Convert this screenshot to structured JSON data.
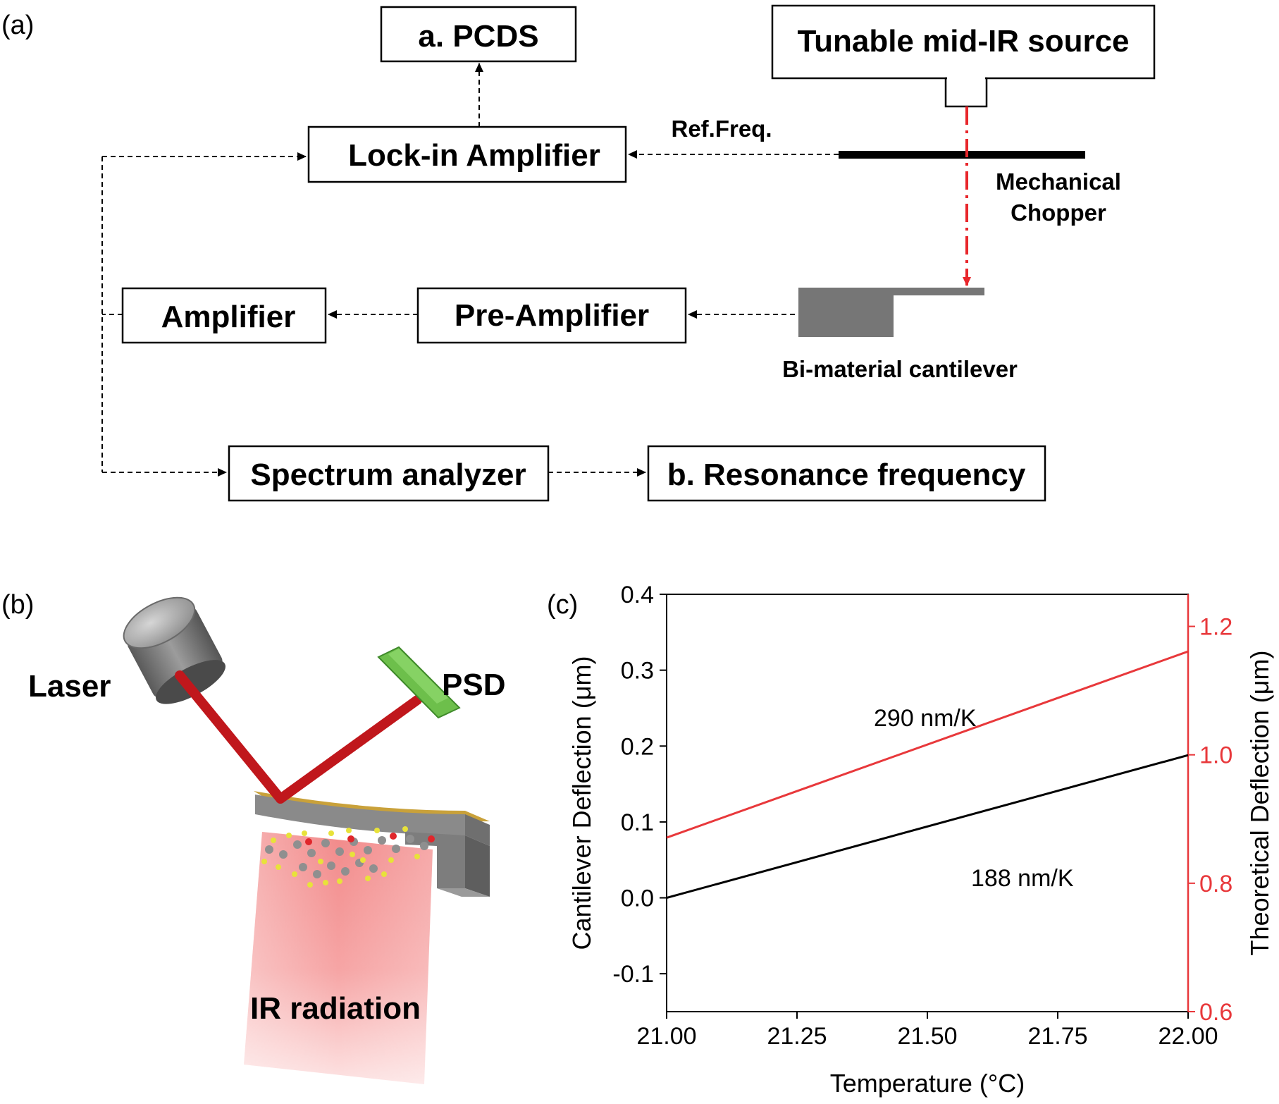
{
  "panel_labels": {
    "a": "(a)",
    "b": "(b)",
    "c": "(c)"
  },
  "diagram": {
    "boxes": {
      "pcds": "a. PCDS",
      "source": "Tunable mid-IR source",
      "lockin": "Lock-in Amplifier",
      "amplifier": "Amplifier",
      "preamp": "Pre-Amplifier",
      "spectrum": "Spectrum analyzer",
      "resonance": "b. Resonance frequency"
    },
    "labels": {
      "ref_freq": "Ref.Freq.",
      "chopper_line1": "Mechanical",
      "chopper_line2": "Chopper",
      "cantilever": "Bi-material cantilever"
    },
    "colors": {
      "beam": "#e8262b",
      "cantilever": "#777777"
    }
  },
  "scene": {
    "laser": "Laser",
    "psd": "PSD",
    "ir": "IR radiation",
    "colors": {
      "beam": "#c0171c",
      "psd": "#6dbf4b",
      "coating": "#c9a13a"
    }
  },
  "chart_data": {
    "type": "line",
    "xlabel": "Temperature (°C)",
    "ylabel_left": "Cantilever Deflection (μm)",
    "ylabel_right": "Theoretical Deflection (μm)",
    "xlim": [
      21.0,
      22.0
    ],
    "ylim_left": [
      -0.15,
      0.4
    ],
    "ylim_right": [
      0.6,
      1.25
    ],
    "x_ticks": [
      "21.00",
      "21.25",
      "21.50",
      "21.75",
      "22.00"
    ],
    "y_ticks_left": [
      "-0.1",
      "0.0",
      "0.1",
      "0.2",
      "0.3",
      "0.4"
    ],
    "y_ticks_right": [
      "0.6",
      "0.8",
      "1.0",
      "1.2"
    ],
    "series": [
      {
        "axis": "left",
        "color": "#000000",
        "x": [
          21.0,
          22.0
        ],
        "y": [
          0.0,
          0.188
        ]
      },
      {
        "axis": "right",
        "color": "#e8383b",
        "x": [
          21.0,
          22.0
        ],
        "y": [
          0.871,
          1.161
        ]
      }
    ],
    "annotations": [
      "290 nm/K",
      "188 nm/K"
    ],
    "axis_colors": {
      "left": "#000000",
      "right": "#e8383b"
    }
  }
}
